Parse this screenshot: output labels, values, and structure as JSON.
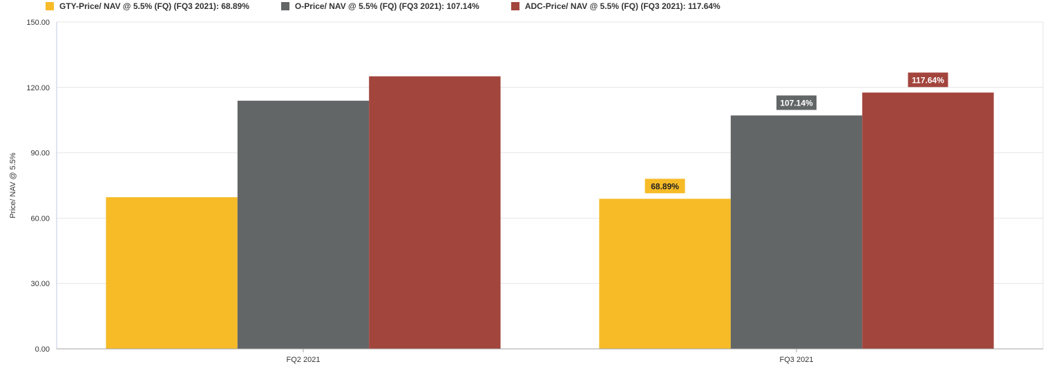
{
  "chart_data": {
    "type": "bar",
    "categories": [
      "FQ2 2021",
      "FQ3 2021"
    ],
    "series": [
      {
        "name": "GTY-Price/ NAV @ 5.5% (FQ) (FQ3 2021): 68.89%",
        "color": "#F6BB27",
        "values": [
          69.6,
          68.89
        ],
        "labels": [
          null,
          "68.89%"
        ]
      },
      {
        "name": "O-Price/ NAV @ 5.5% (FQ) (FQ3 2021): 107.14%",
        "color": "#636667",
        "values": [
          113.9,
          107.14
        ],
        "labels": [
          null,
          "107.14%"
        ]
      },
      {
        "name": "ADC-Price/ NAV @ 5.5% (FQ) (FQ3 2021): 117.64%",
        "color": "#A2453D",
        "values": [
          125.1,
          117.64
        ],
        "labels": [
          null,
          "117.64%"
        ]
      }
    ],
    "ylabel": "Price/ NAV @ 5.5%",
    "xlabel": "",
    "ylim": [
      0,
      150
    ],
    "yticks": [
      "0.00",
      "30.00",
      "60.00",
      "90.00",
      "120.00",
      "150.00"
    ],
    "grid": true,
    "legend_position": "top-left"
  }
}
